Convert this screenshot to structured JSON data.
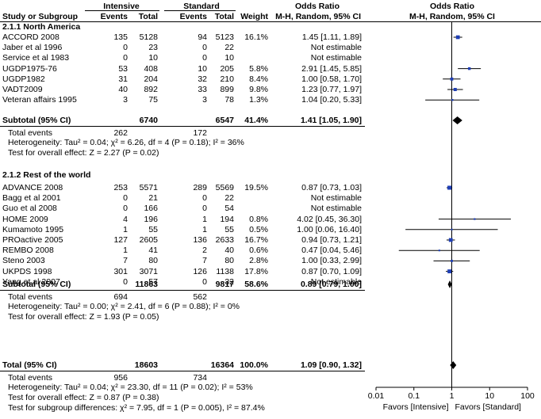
{
  "header": {
    "group1": "Intensive",
    "group2": "Standard",
    "or1": "Odds Ratio",
    "or2": "Odds Ratio",
    "col_study": "Study or Subgroup",
    "col_events1": "Events",
    "col_total1": "Total",
    "col_events2": "Events",
    "col_total2": "Total",
    "col_weight": "Weight",
    "col_method1": "M-H, Random, 95% CI",
    "col_method2": "M-H, Random, 95% CI"
  },
  "subgroups": [
    {
      "title": "2.1.1 North America",
      "studies": [
        {
          "name": "ACCORD 2008",
          "e1": "135",
          "t1": "5128",
          "e2": "94",
          "t2": "5123",
          "weight": "16.1%",
          "ci_text": "1.45 [1.11, 1.89]"
        },
        {
          "name": "Jaber et al 1996",
          "e1": "0",
          "t1": "23",
          "e2": "0",
          "t2": "22",
          "weight": "",
          "ci_text": "Not estimable"
        },
        {
          "name": "Service et al 1983",
          "e1": "0",
          "t1": "10",
          "e2": "0",
          "t2": "10",
          "weight": "",
          "ci_text": "Not estimable"
        },
        {
          "name": "UGDP1975-76",
          "e1": "53",
          "t1": "408",
          "e2": "10",
          "t2": "205",
          "weight": "5.8%",
          "ci_text": "2.91 [1.45, 5.85]"
        },
        {
          "name": "UGDP1982",
          "e1": "31",
          "t1": "204",
          "e2": "32",
          "t2": "210",
          "weight": "8.4%",
          "ci_text": "1.00 [0.58, 1.70]"
        },
        {
          "name": "VADT2009",
          "e1": "40",
          "t1": "892",
          "e2": "33",
          "t2": "899",
          "weight": "9.8%",
          "ci_text": "1.23 [0.77, 1.97]"
        },
        {
          "name": "Veteran affairs 1995",
          "e1": "3",
          "t1": "75",
          "e2": "3",
          "t2": "78",
          "weight": "1.3%",
          "ci_text": "1.04 [0.20, 5.33]"
        }
      ],
      "subtotal": {
        "label": "Subtotal (95% CI)",
        "t1": "6740",
        "t2": "6547",
        "weight": "41.4%",
        "ci_text": "1.41 [1.05, 1.90]"
      },
      "total_events": {
        "label": "Total events",
        "e1": "262",
        "e2": "172"
      },
      "heterogeneity": "Heterogeneity: Tau² = 0.04; χ² = 6.26, df = 4 (P = 0.18); I² = 36%",
      "overall": "Test for overall effect: Z = 2.27 (P = 0.02)"
    },
    {
      "title": "2.1.2 Rest of the world",
      "studies": [
        {
          "name": "ADVANCE 2008",
          "e1": "253",
          "t1": "5571",
          "e2": "289",
          "t2": "5569",
          "weight": "19.5%",
          "ci_text": "0.87 [0.73, 1.03]"
        },
        {
          "name": "Bagg et al 2001",
          "e1": "0",
          "t1": "21",
          "e2": "0",
          "t2": "22",
          "weight": "",
          "ci_text": "Not estimable"
        },
        {
          "name": "Guo et al 2008",
          "e1": "0",
          "t1": "166",
          "e2": "0",
          "t2": "54",
          "weight": "",
          "ci_text": "Not estimable"
        },
        {
          "name": "HOME 2009",
          "e1": "4",
          "t1": "196",
          "e2": "1",
          "t2": "194",
          "weight": "0.8%",
          "ci_text": "4.02 [0.45, 36.30]"
        },
        {
          "name": "Kumamoto 1995",
          "e1": "1",
          "t1": "55",
          "e2": "1",
          "t2": "55",
          "weight": "0.5%",
          "ci_text": "1.00 [0.06, 16.40]"
        },
        {
          "name": "PROactive 2005",
          "e1": "127",
          "t1": "2605",
          "e2": "136",
          "t2": "2633",
          "weight": "16.7%",
          "ci_text": "0.94 [0.73, 1.21]"
        },
        {
          "name": "REMBO 2008",
          "e1": "1",
          "t1": "41",
          "e2": "2",
          "t2": "40",
          "weight": "0.6%",
          "ci_text": "0.47 [0.04, 5.46]"
        },
        {
          "name": "Steno 2003",
          "e1": "7",
          "t1": "80",
          "e2": "7",
          "t2": "80",
          "weight": "2.8%",
          "ci_text": "1.00 [0.33, 2.99]"
        },
        {
          "name": "UKPDS 1998",
          "e1": "301",
          "t1": "3071",
          "e2": "126",
          "t2": "1138",
          "weight": "17.8%",
          "ci_text": "0.87 [0.70, 1.09]"
        },
        {
          "name": "Yang et al 2007",
          "e1": "0",
          "t1": "57",
          "e2": "0",
          "t2": "32",
          "weight": "",
          "ci_text": "Not estimable"
        }
      ],
      "subtotal": {
        "label": "Subtotal (95% CI)",
        "t1": "11863",
        "t2": "9817",
        "weight": "58.6%",
        "ci_text": "0.89 [0.79, 1.00]"
      },
      "total_events": {
        "label": "Total events",
        "e1": "694",
        "e2": "562"
      },
      "heterogeneity": "Heterogeneity: Tau² = 0.00; χ² = 2.41, df = 6 (P = 0.88); I² = 0%",
      "overall": "Test for overall effect: Z = 1.93 (P = 0.05)"
    }
  ],
  "total": {
    "label": "Total (95% CI)",
    "t1": "18603",
    "t2": "16364",
    "weight": "100.0%",
    "ci_text": "1.09 [0.90, 1.32]",
    "events_label": "Total events",
    "e1": "956",
    "e2": "734",
    "heterogeneity": "Heterogeneity: Tau² = 0.04; χ² = 23.30, df = 11 (P = 0.02); I² = 53%",
    "overall": "Test for overall effect: Z = 0.87 (P = 0.38)",
    "subgroup_diff": "Test for subgroup differences: χ² = 7.95, df = 1 (P = 0.005), I² = 87.4%"
  },
  "axis": {
    "ticks": [
      "0.01",
      "0.1",
      "1",
      "10",
      "100"
    ],
    "favors_left": "Favors [Intensive]",
    "favors_right": "Favors [Standard]"
  },
  "colors": {
    "study_marker": "#1f3fb5",
    "diamond": "#000000"
  },
  "chart_data": {
    "type": "forest",
    "scale": "log",
    "xlim": [
      0.01,
      100
    ],
    "null_line": 1,
    "studies": [
      {
        "name": "ACCORD 2008",
        "or": 1.45,
        "lo": 1.11,
        "hi": 1.89,
        "weight": 16.1
      },
      {
        "name": "Jaber et al 1996",
        "or": null
      },
      {
        "name": "Service et al 1983",
        "or": null
      },
      {
        "name": "UGDP1975-76",
        "or": 2.91,
        "lo": 1.45,
        "hi": 5.85,
        "weight": 5.8
      },
      {
        "name": "UGDP1982",
        "or": 1.0,
        "lo": 0.58,
        "hi": 1.7,
        "weight": 8.4
      },
      {
        "name": "VADT2009",
        "or": 1.23,
        "lo": 0.77,
        "hi": 1.97,
        "weight": 9.8
      },
      {
        "name": "Veteran affairs 1995",
        "or": 1.04,
        "lo": 0.2,
        "hi": 5.33,
        "weight": 1.3
      },
      {
        "name": "Subtotal (95% CI)",
        "or": 1.41,
        "lo": 1.05,
        "hi": 1.9,
        "diamond": true
      },
      {
        "name": "ADVANCE 2008",
        "or": 0.87,
        "lo": 0.73,
        "hi": 1.03,
        "weight": 19.5
      },
      {
        "name": "Bagg et al 2001",
        "or": null
      },
      {
        "name": "Guo et al 2008",
        "or": null
      },
      {
        "name": "HOME 2009",
        "or": 4.02,
        "lo": 0.45,
        "hi": 36.3,
        "weight": 0.8
      },
      {
        "name": "Kumamoto 1995",
        "or": 1.0,
        "lo": 0.06,
        "hi": 16.4,
        "weight": 0.5
      },
      {
        "name": "PROactive 2005",
        "or": 0.94,
        "lo": 0.73,
        "hi": 1.21,
        "weight": 16.7
      },
      {
        "name": "REMBO 2008",
        "or": 0.47,
        "lo": 0.04,
        "hi": 5.46,
        "weight": 0.6
      },
      {
        "name": "Steno 2003",
        "or": 1.0,
        "lo": 0.33,
        "hi": 2.99,
        "weight": 2.8
      },
      {
        "name": "UKPDS 1998",
        "or": 0.87,
        "lo": 0.7,
        "hi": 1.09,
        "weight": 17.8
      },
      {
        "name": "Yang et al 2007",
        "or": null
      },
      {
        "name": "Subtotal (95% CI)",
        "or": 0.89,
        "lo": 0.79,
        "hi": 1.0,
        "diamond": true
      },
      {
        "name": "Total (95% CI)",
        "or": 1.09,
        "lo": 0.9,
        "hi": 1.32,
        "diamond": true
      }
    ]
  }
}
